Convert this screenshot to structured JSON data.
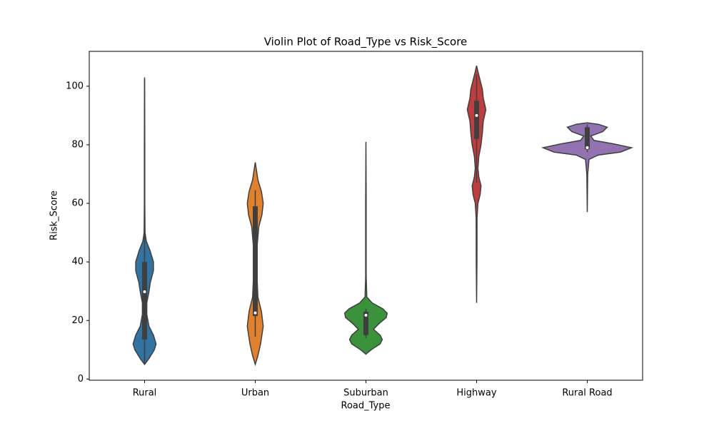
{
  "chart_data": {
    "type": "violin",
    "title": "Violin Plot of Road_Type vs Risk_Score",
    "x_label": "Road_Type",
    "y_label": "Risk_Score",
    "categories": [
      "Rural",
      "Urban",
      "Suburban",
      "Highway",
      "Rural Road"
    ],
    "ylim": [
      -0.4,
      111.9
    ],
    "yticks": [
      0,
      20,
      40,
      60,
      80,
      100
    ],
    "outline_color": "#3f3f3f",
    "violins": [
      {
        "color": "#3274a1",
        "min": 5.4,
        "q1": 13.5,
        "median": 29.8,
        "q3": 40,
        "max": 102.5,
        "kde_y": [
          5,
          7,
          10,
          12,
          15,
          18,
          22,
          26,
          30,
          33,
          37,
          40,
          44,
          47,
          50,
          60,
          80,
          103
        ],
        "kde_width": [
          0,
          0.1,
          0.22,
          0.26,
          0.2,
          0.1,
          0.05,
          0.05,
          0.1,
          0.13,
          0.2,
          0.2,
          0.12,
          0.04,
          0.01,
          0.005,
          0.005,
          0
        ]
      },
      {
        "color": "#e1812c",
        "min": 14.5,
        "q1": 21.5,
        "median": 22.6,
        "q3": 59,
        "max": 64.5,
        "kde_y": [
          5,
          8,
          12,
          18,
          23,
          28,
          35,
          45,
          52,
          56,
          60,
          64,
          68,
          72,
          74
        ],
        "kde_width": [
          0,
          0.06,
          0.12,
          0.18,
          0.14,
          0.06,
          0.04,
          0.04,
          0.08,
          0.15,
          0.18,
          0.14,
          0.06,
          0.02,
          0
        ]
      },
      {
        "color": "#3a923a",
        "min": 14,
        "q1": 15,
        "median": 21.8,
        "q3": 23,
        "max": 24,
        "kde_y": [
          8.5,
          10,
          12,
          13.5,
          15,
          17,
          19,
          21,
          22.5,
          24,
          26,
          28,
          35,
          60,
          81
        ],
        "kde_width": [
          0,
          0.12,
          0.32,
          0.37,
          0.32,
          0.17,
          0.3,
          0.46,
          0.48,
          0.38,
          0.14,
          0.02,
          0.006,
          0.006,
          0
        ]
      },
      {
        "color": "#c03d3e",
        "min": 67,
        "q1": 82,
        "median": 90,
        "q3": 95,
        "max": 104,
        "kde_y": [
          26,
          40,
          55,
          60,
          63,
          66,
          69,
          72,
          76,
          80,
          84,
          88,
          92,
          96,
          99,
          102,
          105,
          107
        ],
        "kde_width": [
          0,
          0.008,
          0.01,
          0.03,
          0.08,
          0.1,
          0.05,
          0.03,
          0.05,
          0.1,
          0.13,
          0.15,
          0.21,
          0.15,
          0.13,
          0.08,
          0.03,
          0
        ]
      },
      {
        "color": "#9372b2",
        "min": 77.5,
        "q1": 78.5,
        "median": 79,
        "q3": 86,
        "max": 87,
        "kde_y": [
          57,
          70,
          75,
          76.5,
          77.5,
          79,
          80.3,
          81.5,
          83,
          84.5,
          86,
          87,
          87.5
        ],
        "kde_width": [
          0,
          0.01,
          0.04,
          0.25,
          0.75,
          1.0,
          0.6,
          0.15,
          0.08,
          0.35,
          0.45,
          0.25,
          0
        ]
      }
    ]
  }
}
